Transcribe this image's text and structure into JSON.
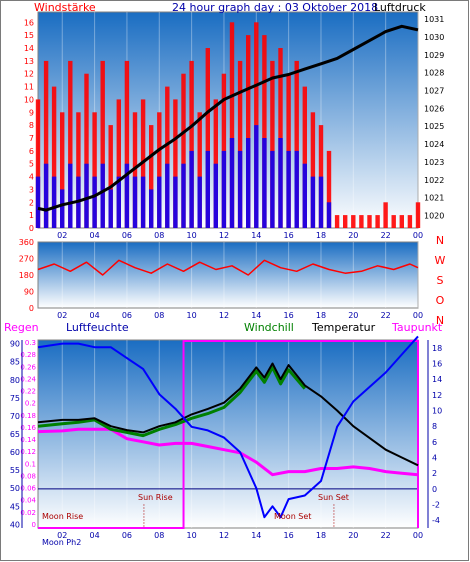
{
  "header": {
    "left": "Windstärke",
    "center": "24 hour graph day : 03 Oktober 2018",
    "right": "Luftdruck"
  },
  "labels": {
    "regen": "Regen",
    "luftfeuchte": "Luftfeuchte",
    "windchill": "Windchill",
    "temperatur": "Temperatur",
    "taupunkt": "Taupunkt",
    "sun_rise": "Sun Rise",
    "sun_set": "Sun Set",
    "moon_rise": "Moon Rise",
    "moon_set": "Moon Set",
    "moon_axis": "Moon Ph2"
  },
  "colors": {
    "wind": "#ff0000",
    "pressure": "#000000",
    "gust": "#0000ff",
    "humidity": "#0000ff",
    "windchill": "#008000",
    "temperature": "#000000",
    "dewpoint": "#ff00ff",
    "rain": "#ff00ff",
    "bg_top": "#1a6dc2",
    "bg_bottom": "#ffffff"
  },
  "chart_data": [
    {
      "type": "bar",
      "title": "Windstärke / Luftdruck",
      "x_ticks": [
        "02",
        "04",
        "06",
        "08",
        "10",
        "12",
        "14",
        "16",
        "18",
        "20",
        "22",
        "00"
      ],
      "y_left_ticks": [
        "0",
        "1",
        "2",
        "3",
        "4",
        "5",
        "6",
        "7",
        "8",
        "9",
        "10",
        "11",
        "12",
        "13",
        "14",
        "15",
        "16"
      ],
      "y_right_ticks": [
        "1020",
        "1021",
        "1022",
        "1023",
        "1024",
        "1025",
        "1026",
        "1027",
        "1028",
        "1029",
        "1030",
        "1031"
      ],
      "ylim_left": [
        0,
        16.8
      ],
      "ylim_right": [
        1019.3,
        1031.4
      ],
      "xlim": [
        0.5,
        24.0
      ],
      "series": [
        {
          "name": "Luftdruck",
          "axis": "right",
          "x": [
            0.5,
            1,
            2,
            3,
            4,
            5,
            6,
            7,
            8,
            9,
            10,
            11,
            12,
            13,
            14,
            15,
            16,
            17,
            18,
            19,
            20,
            21,
            22,
            23,
            24
          ],
          "values": [
            1020.4,
            1020.3,
            1020.6,
            1020.8,
            1021.1,
            1021.6,
            1022.3,
            1023.0,
            1023.7,
            1024.3,
            1025.0,
            1025.8,
            1026.5,
            1026.9,
            1027.3,
            1027.7,
            1027.9,
            1028.2,
            1028.5,
            1028.8,
            1029.3,
            1029.8,
            1030.3,
            1030.6,
            1030.4
          ]
        },
        {
          "name": "Windstärke",
          "axis": "left",
          "x": [
            0.5,
            1,
            1.5,
            2,
            2.5,
            3,
            3.5,
            4,
            4.5,
            5,
            5.5,
            6,
            6.5,
            7,
            7.5,
            8,
            8.5,
            9,
            9.5,
            10,
            10.5,
            11,
            11.5,
            12,
            12.5,
            13,
            13.5,
            14,
            14.5,
            15,
            15.5,
            16,
            16.5,
            17,
            17.5,
            18,
            18.5,
            19,
            19.5,
            20,
            20.5,
            21,
            21.5,
            22,
            22.5,
            23,
            23.5,
            24
          ],
          "values": [
            10,
            13,
            11,
            9,
            13,
            9,
            12,
            9,
            13,
            8,
            10,
            13,
            9,
            10,
            8,
            9,
            11,
            10,
            12,
            13,
            9,
            14,
            10,
            12,
            16,
            13,
            15,
            16,
            15,
            13,
            14,
            12,
            13,
            11,
            9,
            8,
            6,
            1,
            1,
            1,
            1,
            1,
            1,
            2,
            1,
            1,
            1,
            2
          ]
        },
        {
          "name": "Böen",
          "axis": "left",
          "x": [
            0.5,
            1,
            1.5,
            2,
            2.5,
            3,
            3.5,
            4,
            4.5,
            5,
            5.5,
            6,
            6.5,
            7,
            7.5,
            8,
            8.5,
            9,
            9.5,
            10,
            10.5,
            11,
            11.5,
            12,
            12.5,
            13,
            13.5,
            14,
            14.5,
            15,
            15.5,
            16,
            16.5,
            17,
            17.5,
            18,
            18.5
          ],
          "values": [
            4,
            5,
            4,
            3,
            5,
            4,
            5,
            4,
            5,
            3,
            4,
            5,
            4,
            4,
            3,
            4,
            5,
            4,
            5,
            6,
            4,
            6,
            5,
            6,
            7,
            6,
            7,
            8,
            7,
            6,
            7,
            6,
            6,
            5,
            4,
            4,
            2
          ]
        }
      ]
    },
    {
      "type": "line",
      "title": "Windrichtung",
      "x_ticks": [
        "02",
        "04",
        "06",
        "08",
        "10",
        "12",
        "14",
        "16",
        "18",
        "20",
        "22",
        "00"
      ],
      "y_ticks": [
        "0",
        "90",
        "180",
        "270",
        "360"
      ],
      "right_labels": [
        "N",
        "W",
        "S",
        "O",
        "N"
      ],
      "ylim": [
        0,
        360
      ],
      "xlim": [
        0.5,
        24.0
      ],
      "series": [
        {
          "name": "Windrichtung",
          "x": [
            0.5,
            1.5,
            2.5,
            3.5,
            4.5,
            5.5,
            6.5,
            7.5,
            8.5,
            9.5,
            10.5,
            11.5,
            12.5,
            13.5,
            14.5,
            15.5,
            16.5,
            17.5,
            18.5,
            19.5,
            20.5,
            21.5,
            22.5,
            23.5,
            24
          ],
          "values": [
            210,
            240,
            200,
            250,
            180,
            260,
            220,
            190,
            240,
            200,
            250,
            210,
            230,
            180,
            260,
            220,
            200,
            240,
            210,
            190,
            200,
            230,
            210,
            240,
            220
          ]
        }
      ]
    },
    {
      "type": "line",
      "title": "Regen / Luftfeuchte / Windchill / Temperatur / Taupunkt",
      "x_ticks": [
        "02",
        "04",
        "06",
        "08",
        "10",
        "12",
        "14",
        "16",
        "18",
        "20",
        "22",
        "00"
      ],
      "y_left_humidity_ticks": [
        "40",
        "45",
        "50",
        "55",
        "60",
        "65",
        "70",
        "75",
        "80",
        "85",
        "90"
      ],
      "y_left_rain_ticks": [
        "0",
        "0.02",
        "0.04",
        "0.06",
        "0.08",
        "0.1",
        "0.12",
        "0.14",
        "0.16",
        "0.18",
        "0.2",
        "0.22",
        "0.24",
        "0.26",
        "0.28",
        "0.3"
      ],
      "y_right_ticks": [
        "-4",
        "-2",
        "0",
        "2",
        "4",
        "6",
        "8",
        "10",
        "12",
        "14",
        "16",
        "18"
      ],
      "ylim_humidity": [
        39,
        91
      ],
      "ylim_temperature": [
        -5,
        19
      ],
      "xlim": [
        0.5,
        24.0
      ],
      "series": [
        {
          "name": "Luftfeuchte",
          "axis": "humidity",
          "x": [
            0.5,
            2,
            3,
            4,
            5,
            6,
            7,
            8,
            9,
            10,
            11,
            12,
            13,
            14,
            14.5,
            15,
            15.5,
            16,
            17,
            18,
            19,
            20,
            21,
            22,
            23,
            24
          ],
          "values": [
            89,
            90,
            90,
            89,
            89,
            86,
            83,
            76,
            72,
            67,
            66,
            64,
            60,
            50,
            42,
            45,
            42,
            47,
            48,
            52,
            67,
            74,
            78,
            82,
            87,
            92
          ]
        },
        {
          "name": "Temperatur",
          "axis": "temperature",
          "x": [
            0.5,
            2,
            3,
            4,
            5,
            6,
            7,
            8,
            9,
            10,
            11,
            12,
            13,
            14,
            14.5,
            15,
            15.5,
            16,
            17,
            18,
            19,
            20,
            21,
            22,
            23,
            24
          ],
          "values": [
            8.5,
            8.8,
            8.8,
            9.0,
            8.0,
            7.5,
            7.2,
            8.0,
            8.5,
            9.5,
            10.2,
            11.0,
            12.8,
            15.5,
            14.2,
            16.0,
            14.0,
            15.8,
            13.2,
            11.8,
            10.0,
            8.0,
            6.5,
            5.0,
            4.0,
            3.0
          ]
        },
        {
          "name": "Windchill",
          "axis": "temperature",
          "x": [
            0.5,
            2,
            3,
            4,
            5,
            6,
            7,
            8,
            9,
            10,
            11,
            12,
            13,
            14,
            14.5,
            15,
            15.5,
            16,
            17
          ],
          "values": [
            8.0,
            8.3,
            8.5,
            8.8,
            7.6,
            7.2,
            6.8,
            7.6,
            8.2,
            9.0,
            9.6,
            10.4,
            12.3,
            15.0,
            13.6,
            15.5,
            13.4,
            15.2,
            12.8
          ]
        },
        {
          "name": "Taupunkt",
          "axis": "temperature",
          "x": [
            0.5,
            2,
            3,
            4,
            5,
            6,
            7,
            8,
            9,
            10,
            11,
            12,
            13,
            14,
            15,
            16,
            17,
            18,
            19,
            20,
            21,
            22,
            23,
            24
          ],
          "values": [
            7.3,
            7.4,
            7.6,
            7.6,
            7.6,
            6.4,
            6.0,
            5.6,
            5.8,
            5.8,
            5.4,
            5.0,
            4.6,
            3.4,
            1.8,
            2.2,
            2.2,
            2.6,
            2.6,
            2.8,
            2.6,
            2.2,
            2.0,
            1.8
          ]
        },
        {
          "name": "Regen",
          "axis": "rain",
          "x": [
            0.5,
            24
          ],
          "values": [
            0,
            0
          ]
        }
      ]
    }
  ]
}
